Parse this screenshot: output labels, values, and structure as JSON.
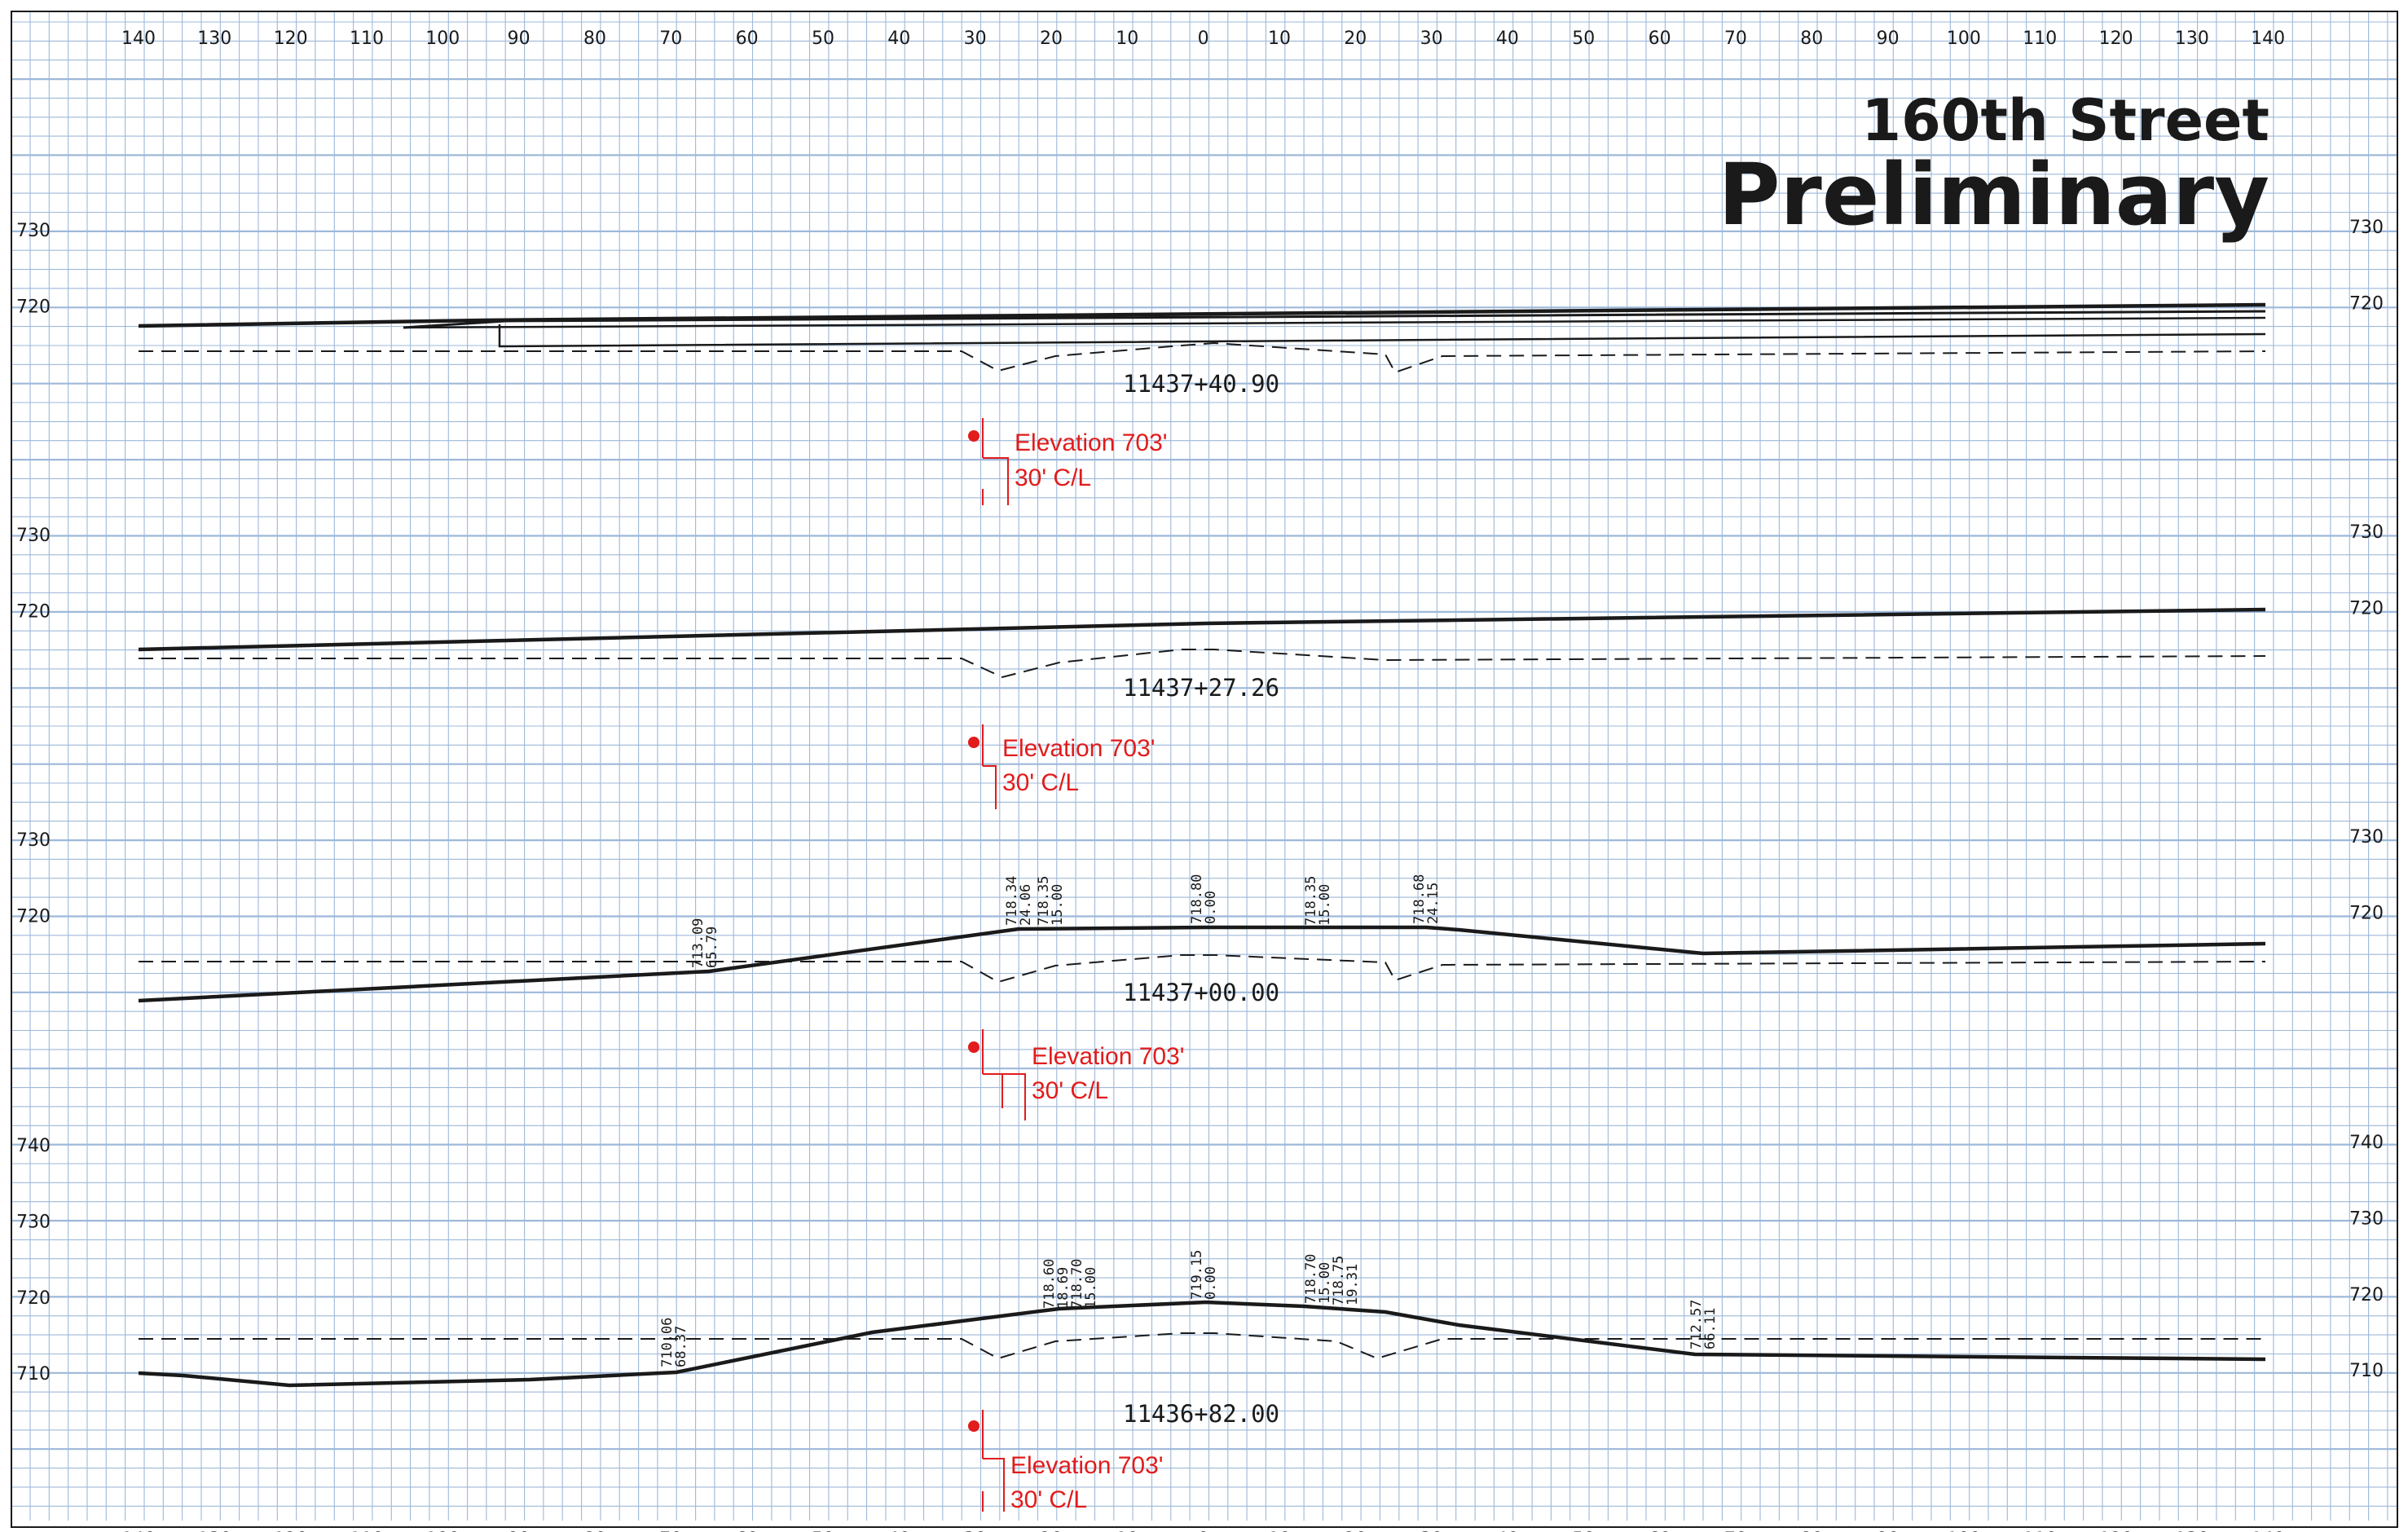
{
  "sheet": {
    "title_line1": "160th Street",
    "title_line2": "Preliminary",
    "offset_ticks": [
      "140",
      "130",
      "120",
      "110",
      "100",
      "90",
      "80",
      "70",
      "60",
      "50",
      "40",
      "30",
      "20",
      "10",
      "0",
      "10",
      "20",
      "30",
      "40",
      "50",
      "60",
      "70",
      "80",
      "90",
      "100",
      "110",
      "120",
      "130",
      "140"
    ]
  },
  "colors": {
    "grid_line": "#9db8d9",
    "ink": "#1a1a1a",
    "annotation": "#e21b1b"
  },
  "sections": [
    {
      "station": "11437+40.90",
      "elevation_ticks": [
        "730",
        "720"
      ],
      "note": {
        "line1": "Elevation 703'",
        "line2": "30' C/L",
        "offset": 30
      },
      "point_labels": []
    },
    {
      "station": "11437+27.26",
      "elevation_ticks": [
        "730",
        "720"
      ],
      "note": {
        "line1": "Elevation 703'",
        "line2": "30' C/L",
        "offset": 30
      },
      "point_labels": []
    },
    {
      "station": "11437+00.00",
      "elevation_ticks": [
        "730",
        "720"
      ],
      "note": {
        "line1": "Elevation 703'",
        "line2": "30' C/L",
        "offset": 30
      },
      "point_labels": [
        {
          "elevation": "713.09",
          "offset": "65.79"
        },
        {
          "elevation": "718.34",
          "offset": "24.06"
        },
        {
          "elevation": "718.35",
          "offset": "15.00"
        },
        {
          "elevation": "718.80",
          "offset": "0.00"
        },
        {
          "elevation": "718.35",
          "offset": "15.00"
        },
        {
          "elevation": "718.68",
          "offset": "24.15"
        }
      ]
    },
    {
      "station": "11436+82.00",
      "elevation_ticks": [
        "740",
        "730",
        "720",
        "710"
      ],
      "note": {
        "line1": "Elevation 703'",
        "line2": "30' C/L",
        "offset": 30
      },
      "point_labels": [
        {
          "elevation": "710.06",
          "offset": "68.37"
        },
        {
          "elevation": "718.60",
          "offset": "18.69"
        },
        {
          "elevation": "718.70",
          "offset": "15.00"
        },
        {
          "elevation": "719.15",
          "offset": "0.00"
        },
        {
          "elevation": "718.70",
          "offset": "15.00"
        },
        {
          "elevation": "718.75",
          "offset": "19.31"
        },
        {
          "elevation": "712.57",
          "offset": "66.11"
        }
      ]
    }
  ]
}
